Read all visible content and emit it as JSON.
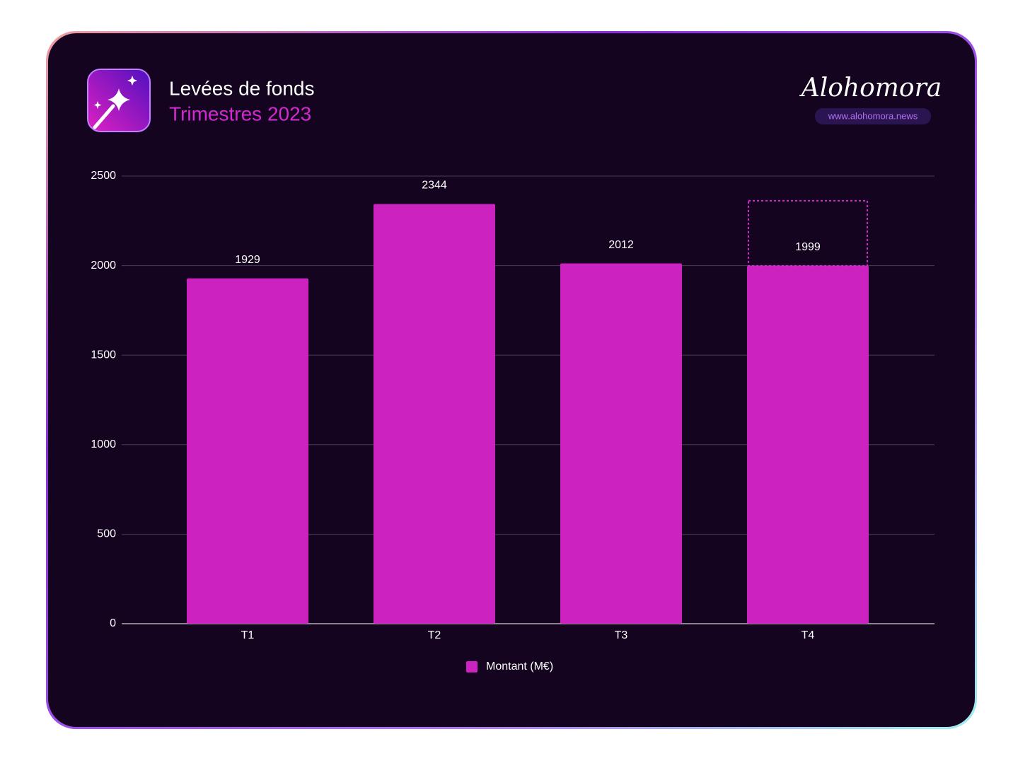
{
  "chart_data": {
    "type": "bar",
    "title": "Levées de fonds",
    "subtitle": "Trimestres 2023",
    "brand": "Alohomora",
    "url": "www.alohomora.news",
    "categories": [
      "T1",
      "T2",
      "T3",
      "T4"
    ],
    "series": [
      {
        "name": "Montant (M€)",
        "color": "#cc22c0",
        "values": [
          1929,
          2344,
          2012,
          1999
        ]
      }
    ],
    "ylim": [
      0,
      2500
    ],
    "yticks": [
      0,
      500,
      1000,
      1500,
      2000,
      2500
    ],
    "grid": true,
    "legend": "bottom"
  }
}
